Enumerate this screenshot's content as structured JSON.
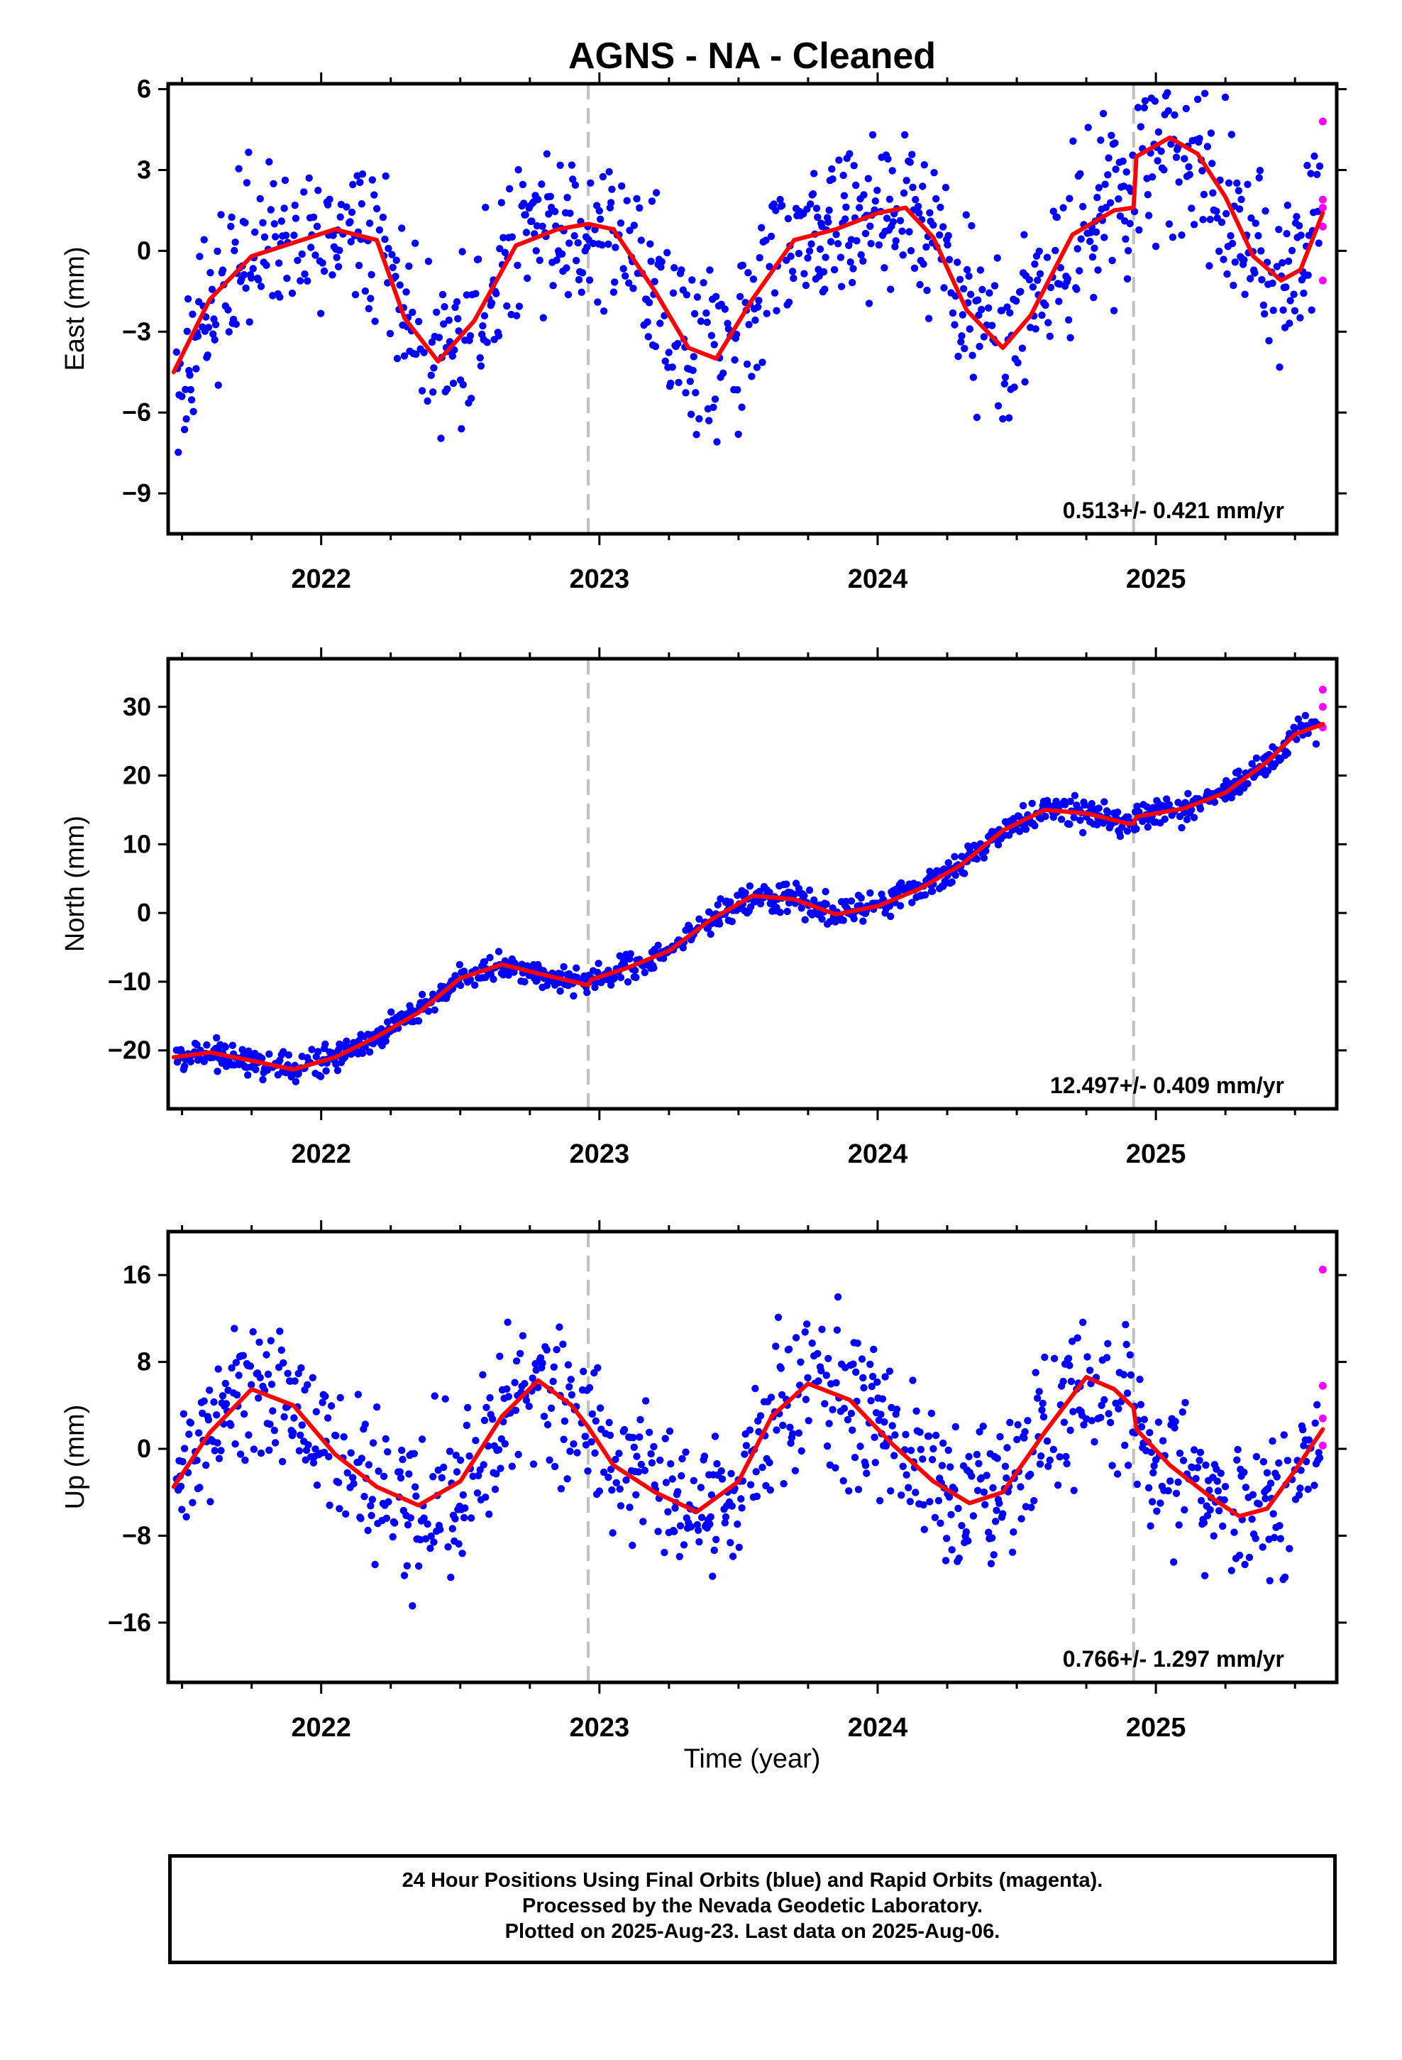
{
  "chart_data": {
    "type": "scatter",
    "title": "AGNS  - NA - Cleaned",
    "xlabel": "Time (year)",
    "xlim": [
      2021.45,
      2025.65
    ],
    "x_ticks": [
      "2022",
      "2023",
      "2024",
      "2025"
    ],
    "legend": "",
    "colors": {
      "final_orbits": "#0000ff",
      "rapid_orbits": "#ff00ff",
      "fit": "#ff0000",
      "offset_lines": "#c0c0c0"
    },
    "offset_dates": [
      2022.96,
      2024.92
    ],
    "panels": [
      {
        "ylabel": "East (mm)",
        "ylim": [
          -10.5,
          6.2
        ],
        "y_ticks": [
          "6",
          "3",
          "0",
          "−3",
          "−6",
          "−9"
        ],
        "y_tick_values": [
          6,
          3,
          0,
          -3,
          -6,
          -9
        ],
        "rate": "0.513+/- 0.421 mm/yr",
        "fit_curve": {
          "x": [
            2021.47,
            2021.6,
            2021.75,
            2021.9,
            2022.05,
            2022.2,
            2022.3,
            2022.42,
            2022.55,
            2022.7,
            2022.85,
            2022.96,
            2023.05,
            2023.2,
            2023.32,
            2023.42,
            2023.55,
            2023.7,
            2023.85,
            2024.0,
            2024.1,
            2024.2,
            2024.32,
            2024.45,
            2024.55,
            2024.7,
            2024.85,
            2024.92,
            2024.93,
            2025.05,
            2025.15,
            2025.25,
            2025.35,
            2025.45,
            2025.52,
            2025.6
          ],
          "y": [
            -4.5,
            -1.8,
            -0.2,
            0.3,
            0.8,
            0.4,
            -2.5,
            -4.1,
            -2.6,
            0.2,
            0.8,
            1.0,
            0.8,
            -1.5,
            -3.6,
            -4.0,
            -1.8,
            0.4,
            0.8,
            1.4,
            1.6,
            0.5,
            -2.2,
            -3.6,
            -2.4,
            0.6,
            1.5,
            1.6,
            3.5,
            4.2,
            3.6,
            2.0,
            -0.2,
            -1.1,
            -0.7,
            1.4
          ]
        },
        "rapid_points": {
          "x": [
            2025.6,
            2025.6,
            2025.6,
            2025.6,
            2025.6
          ],
          "y": [
            4.8,
            1.9,
            1.6,
            0.9,
            -1.1
          ]
        }
      },
      {
        "ylabel": "North (mm)",
        "ylim": [
          -28.5,
          37
        ],
        "y_ticks": [
          "30",
          "20",
          "10",
          "0",
          "−10",
          "−20"
        ],
        "y_tick_values": [
          30,
          20,
          10,
          0,
          -10,
          -20
        ],
        "rate": "12.497+/- 0.409 mm/yr",
        "fit_curve": {
          "x": [
            2021.47,
            2021.6,
            2021.75,
            2021.9,
            2022.05,
            2022.2,
            2022.35,
            2022.5,
            2022.65,
            2022.8,
            2022.96,
            2022.97,
            2023.1,
            2023.25,
            2023.4,
            2023.55,
            2023.7,
            2023.85,
            2024.0,
            2024.15,
            2024.3,
            2024.45,
            2024.6,
            2024.75,
            2024.9,
            2024.92,
            2024.93,
            2025.1,
            2025.25,
            2025.4,
            2025.5,
            2025.6
          ],
          "y": [
            -21.0,
            -20.3,
            -21.5,
            -22.8,
            -21.0,
            -18.0,
            -14.5,
            -9.5,
            -7.5,
            -9.0,
            -10.5,
            -9.7,
            -8.0,
            -5.5,
            -1.0,
            2.5,
            2.0,
            -0.2,
            1.0,
            3.5,
            7.0,
            12.0,
            15.0,
            14.5,
            13.0,
            13.0,
            14.0,
            15.2,
            17.5,
            22.0,
            26.0,
            27.5
          ]
        },
        "rapid_points": {
          "x": [
            2025.6,
            2025.6,
            2025.6
          ],
          "y": [
            32.5,
            30.0,
            27.0
          ]
        }
      },
      {
        "ylabel": "Up (mm)",
        "ylim": [
          -21.5,
          20
        ],
        "y_ticks": [
          "16",
          "8",
          "0",
          "−8",
          "−16"
        ],
        "y_tick_values": [
          16,
          8,
          0,
          -8,
          -16
        ],
        "rate": "0.766+/- 1.297 mm/yr",
        "fit_curve": {
          "x": [
            2021.47,
            2021.6,
            2021.75,
            2021.9,
            2022.05,
            2022.2,
            2022.35,
            2022.5,
            2022.65,
            2022.78,
            2022.9,
            2022.96,
            2023.05,
            2023.2,
            2023.35,
            2023.5,
            2023.62,
            2023.75,
            2023.9,
            2024.05,
            2024.2,
            2024.33,
            2024.45,
            2024.6,
            2024.75,
            2024.85,
            2024.92,
            2024.93,
            2025.05,
            2025.2,
            2025.3,
            2025.4,
            2025.5,
            2025.6
          ],
          "y": [
            -3.5,
            1.5,
            5.5,
            4.0,
            -0.5,
            -3.5,
            -5.2,
            -3.0,
            3.0,
            6.3,
            4.0,
            2.0,
            -1.5,
            -4.0,
            -5.8,
            -3.0,
            3.0,
            6.0,
            4.5,
            0.5,
            -3.0,
            -5.0,
            -4.0,
            1.5,
            6.6,
            5.5,
            3.8,
            1.8,
            -1.5,
            -4.5,
            -6.2,
            -5.5,
            -2.0,
            1.8
          ]
        },
        "rapid_points": {
          "x": [
            2025.6,
            2025.6,
            2025.6,
            2025.6
          ],
          "y": [
            16.5,
            5.8,
            2.8,
            0.3
          ]
        }
      }
    ]
  },
  "footer": {
    "line1": "24 Hour Positions Using Final Orbits (blue) and Rapid Orbits (magenta).",
    "line2": "Processed by the Nevada Geodetic Laboratory.",
    "line3": "Plotted on 2025-Aug-23. Last data on 2025-Aug-06."
  }
}
